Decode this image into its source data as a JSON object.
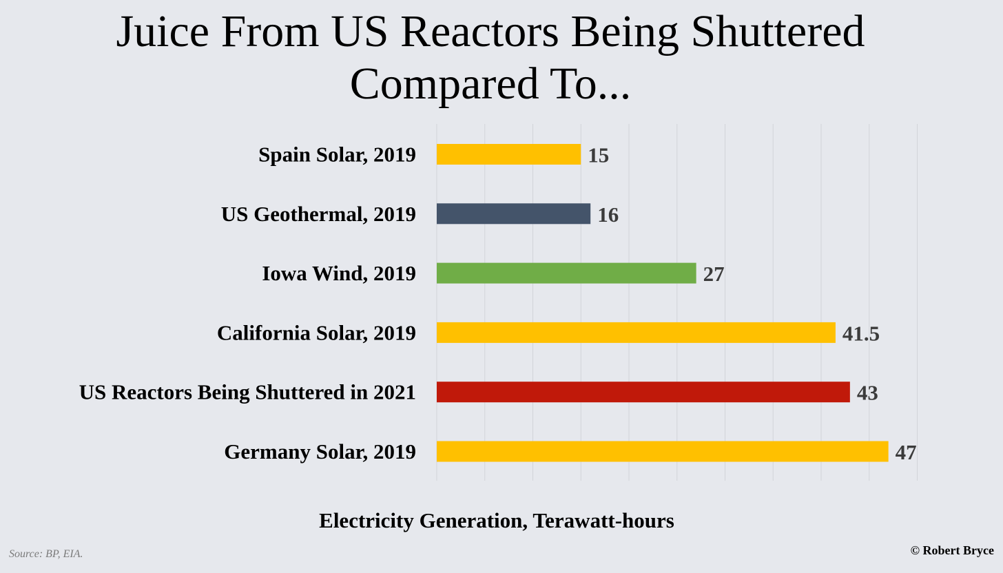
{
  "chart_data": {
    "type": "bar",
    "orientation": "horizontal",
    "title_lines": [
      "Juice From US Reactors Being Shuttered",
      "Compared To..."
    ],
    "categories": [
      "Spain Solar, 2019",
      "US Geothermal, 2019",
      "Iowa Wind, 2019",
      "California Solar, 2019",
      "US Reactors Being Shuttered in 2021",
      "Germany Solar, 2019"
    ],
    "values": [
      15,
      16,
      27,
      41.5,
      43,
      47
    ],
    "value_labels": [
      "15",
      "16",
      "27",
      "41.5",
      "43",
      "47"
    ],
    "colors": [
      "#ffc000",
      "#44546a",
      "#70ad47",
      "#ffc000",
      "#c0190a",
      "#ffc000"
    ],
    "xlabel": "Electricity Generation, Terawatt-hours",
    "xlim": [
      0,
      50
    ],
    "grid": true,
    "legend": "none"
  },
  "footer": {
    "source": "Source: BP, EIA.",
    "copyright": "© Robert Bryce"
  }
}
